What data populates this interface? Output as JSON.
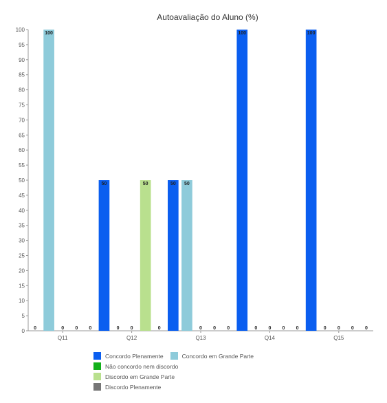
{
  "chart_data": {
    "type": "bar",
    "title": "Autoavaliação do Aluno (%)",
    "xlabel": "",
    "ylabel": "",
    "ylim": [
      0,
      100
    ],
    "ytick_step": 5,
    "grid": false,
    "legend_position": "bottom",
    "categories": [
      "Q11",
      "Q12",
      "Q13",
      "Q14",
      "Q15"
    ],
    "series": [
      {
        "name": "Concordo Plenamente",
        "color": "#0a5ef0",
        "values": [
          0,
          50,
          50,
          100,
          100
        ]
      },
      {
        "name": "Concordo em Grande Parte",
        "color": "#8ecbda",
        "values": [
          100,
          0,
          50,
          0,
          0
        ]
      },
      {
        "name": "Não concordo nem discordo",
        "color": "#12b01a",
        "values": [
          0,
          0,
          0,
          0,
          0
        ]
      },
      {
        "name": "Discordo em Grande Parte",
        "color": "#b9e08e",
        "values": [
          0,
          50,
          0,
          0,
          0
        ]
      },
      {
        "name": "Discordo Plenamente",
        "color": "#767676",
        "values": [
          0,
          0,
          0,
          0,
          0
        ]
      }
    ]
  }
}
